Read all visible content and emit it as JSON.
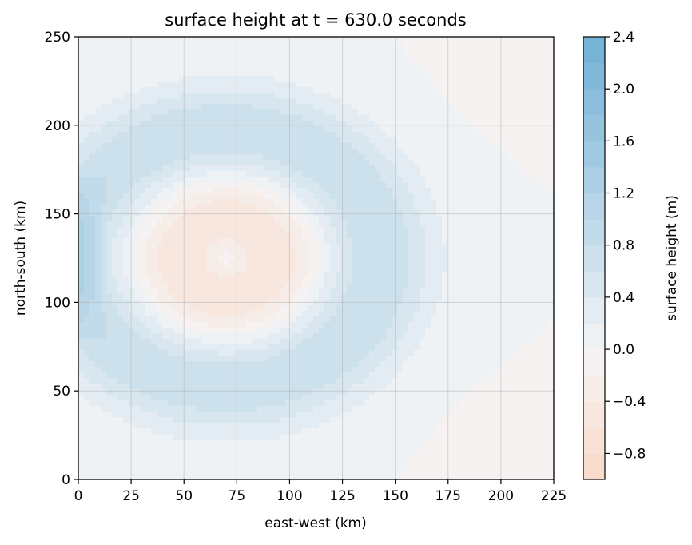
{
  "chart_data": {
    "type": "heatmap",
    "subtype": "filled-contour",
    "title": "surface height at t = 630.0 seconds",
    "xlabel": "east-west (km)",
    "ylabel": "north-south (km)",
    "xlim": [
      0,
      225
    ],
    "ylim": [
      0,
      250
    ],
    "xticks": [
      "0",
      "25",
      "50",
      "75",
      "100",
      "125",
      "150",
      "175",
      "200",
      "225"
    ],
    "yticks": [
      "0",
      "50",
      "100",
      "150",
      "200",
      "250"
    ],
    "grid": true,
    "colorbar": {
      "label": "surface height (m)",
      "range": [
        -1.0,
        2.4
      ],
      "ticks": [
        "−0.8",
        "−0.4",
        "0.0",
        "0.4",
        "0.8",
        "1.2",
        "1.6",
        "2.0",
        "2.4"
      ],
      "tick_values": [
        -0.8,
        -0.4,
        0.0,
        0.4,
        0.8,
        1.2,
        1.6,
        2.0,
        2.4
      ],
      "level_step": 0.2,
      "colors": {
        "low": "#fbd9c7",
        "zero": "#f4f5f6",
        "high": "#6fb0d6"
      }
    },
    "field": {
      "description_units": "m",
      "wave_center_km": [
        70,
        125
      ],
      "ring_radius_km": 72,
      "ring_peak_m": 0.8,
      "center_trough_m": -0.6,
      "center_local_peak_m": -0.1,
      "edge_strip_x_max_km": 15,
      "edge_strip_peak_m": 1.4,
      "corner_value_m": -0.15
    }
  }
}
